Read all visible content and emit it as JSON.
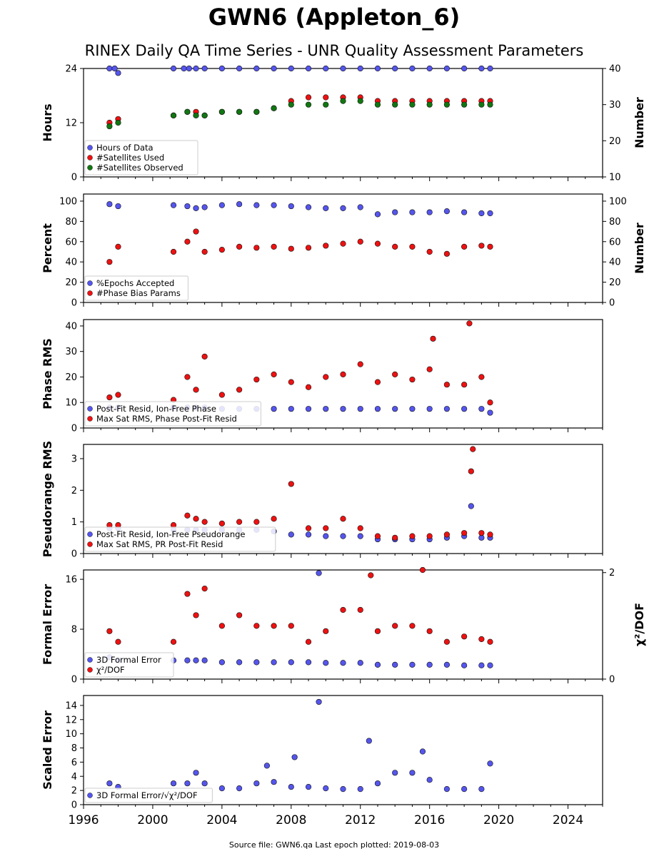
{
  "title": "GWN6 (Appleton_6)",
  "subtitle": "RINEX Daily QA Time Series - UNR Quality Assessment Parameters",
  "footer": "Source file: GWN6.qa Last epoch plotted: 2019-08-03",
  "colors": {
    "blue": "#5555ee",
    "red": "#ee1111",
    "green": "#117711"
  },
  "chart_data": [
    {
      "type": "scatter",
      "ylabel": "Hours",
      "ylabel_right": "Number",
      "ylim": [
        0,
        24
      ],
      "ylim_right": [
        10,
        40
      ],
      "yticks": [
        0,
        12,
        24
      ],
      "yticks_right": [
        10,
        20,
        30,
        40
      ],
      "legend": "bottom-left",
      "series": [
        {
          "name": "Hours of Data",
          "color": "blue",
          "axis": "left",
          "x": [
            1997.5,
            1997.8,
            1998.0,
            2001.2,
            2001.8,
            2002.1,
            2002.5,
            2003.0,
            2004.0,
            2005.0,
            2006.0,
            2007.0,
            2008.0,
            2009.0,
            2010.0,
            2011.0,
            2012.0,
            2013.0,
            2014.0,
            2015.0,
            2016.0,
            2017.0,
            2018.0,
            2019.0,
            2019.5
          ],
          "y": [
            24,
            24,
            23,
            24,
            24,
            24,
            24,
            24,
            24,
            24,
            24,
            24,
            24,
            24,
            24,
            24,
            24,
            24,
            24,
            24,
            24,
            24,
            24,
            24,
            24
          ]
        },
        {
          "name": "#Satellites Used",
          "color": "red",
          "axis": "right",
          "x": [
            1997.5,
            1998.0,
            2001.2,
            2002.0,
            2002.5,
            2003.0,
            2004.0,
            2005.0,
            2006.0,
            2007.0,
            2008.0,
            2009.0,
            2010.0,
            2011.0,
            2012.0,
            2013.0,
            2014.0,
            2015.0,
            2016.0,
            2017.0,
            2018.0,
            2019.0,
            2019.5
          ],
          "y": [
            25,
            26,
            27,
            28,
            28,
            27,
            28,
            28,
            28,
            29,
            31,
            32,
            32,
            32,
            32,
            31,
            31,
            31,
            31,
            31,
            31,
            31,
            31
          ]
        },
        {
          "name": "#Satellites Observed",
          "color": "green",
          "axis": "right",
          "x": [
            1997.5,
            1998.0,
            2001.2,
            2002.0,
            2002.5,
            2003.0,
            2004.0,
            2005.0,
            2006.0,
            2007.0,
            2008.0,
            2009.0,
            2010.0,
            2011.0,
            2012.0,
            2013.0,
            2014.0,
            2015.0,
            2016.0,
            2017.0,
            2018.0,
            2019.0,
            2019.5
          ],
          "y": [
            24,
            25,
            27,
            28,
            27,
            27,
            28,
            28,
            28,
            29,
            30,
            30,
            30,
            31,
            31,
            30,
            30,
            30,
            30,
            30,
            30,
            30,
            30
          ]
        }
      ]
    },
    {
      "type": "scatter",
      "ylabel": "Percent",
      "ylabel_right": "Number",
      "ylim": [
        0,
        107
      ],
      "ylim_right": [
        0,
        107
      ],
      "yticks": [
        0,
        20,
        40,
        60,
        80,
        100
      ],
      "yticks_right": [
        0,
        20,
        40,
        60,
        80,
        100
      ],
      "legend": "bottom-left",
      "series": [
        {
          "name": "%Epochs Accepted",
          "color": "blue",
          "axis": "left",
          "x": [
            1997.5,
            1998.0,
            2001.2,
            2002.0,
            2002.5,
            2003.0,
            2004.0,
            2005.0,
            2006.0,
            2007.0,
            2008.0,
            2009.0,
            2010.0,
            2011.0,
            2012.0,
            2013.0,
            2014.0,
            2015.0,
            2016.0,
            2017.0,
            2018.0,
            2019.0,
            2019.5
          ],
          "y": [
            97,
            95,
            96,
            95,
            93,
            94,
            96,
            97,
            96,
            96,
            95,
            94,
            93,
            93,
            94,
            87,
            89,
            89,
            89,
            90,
            89,
            88,
            88
          ]
        },
        {
          "name": "#Phase Bias Params",
          "color": "red",
          "axis": "right",
          "x": [
            1997.5,
            1998.0,
            2001.2,
            2002.0,
            2002.5,
            2003.0,
            2004.0,
            2005.0,
            2006.0,
            2007.0,
            2008.0,
            2009.0,
            2010.0,
            2011.0,
            2012.0,
            2013.0,
            2014.0,
            2015.0,
            2016.0,
            2017.0,
            2018.0,
            2019.0,
            2019.5
          ],
          "y": [
            40,
            55,
            50,
            60,
            70,
            50,
            52,
            55,
            54,
            55,
            53,
            54,
            56,
            58,
            60,
            58,
            55,
            55,
            50,
            48,
            55,
            56,
            55
          ]
        }
      ]
    },
    {
      "type": "scatter",
      "ylabel": "Phase RMS",
      "ylim": [
        0,
        42.5
      ],
      "yticks": [
        0,
        10,
        20,
        30,
        40
      ],
      "legend": "bottom-left",
      "series": [
        {
          "name": "Post-Fit Resid, Ion-Free Phase",
          "color": "blue",
          "x": [
            1997.5,
            1998.0,
            2001.2,
            2002.0,
            2002.5,
            2003.0,
            2004.0,
            2005.0,
            2006.0,
            2007.0,
            2008.0,
            2009.0,
            2010.0,
            2011.0,
            2012.0,
            2013.0,
            2014.0,
            2015.0,
            2016.0,
            2017.0,
            2018.0,
            2019.0,
            2019.5
          ],
          "y": [
            8,
            8,
            8,
            8,
            8,
            8,
            7.5,
            7.5,
            7.5,
            7.5,
            7.5,
            7.5,
            7.5,
            7.5,
            7.5,
            7.5,
            7.5,
            7.5,
            7.5,
            7.5,
            7.5,
            7.5,
            6
          ]
        },
        {
          "name": "Max Sat RMS, Phase Post-Fit Resid",
          "color": "red",
          "x": [
            1997.5,
            1998.0,
            2001.2,
            2002.0,
            2002.5,
            2003.0,
            2004.0,
            2005.0,
            2006.0,
            2007.0,
            2008.0,
            2009.0,
            2010.0,
            2011.0,
            2012.0,
            2013.0,
            2014.0,
            2015.0,
            2016.0,
            2016.2,
            2017.0,
            2018.0,
            2018.3,
            2019.0,
            2019.5
          ],
          "y": [
            12,
            13,
            11,
            20,
            15,
            28,
            13,
            15,
            19,
            21,
            18,
            16,
            20,
            21,
            25,
            18,
            21,
            19,
            23,
            35,
            17,
            17,
            41,
            20,
            10
          ]
        }
      ]
    },
    {
      "type": "scatter",
      "ylabel": "Pseudorange RMS",
      "ylim": [
        0,
        3.45
      ],
      "yticks": [
        0,
        1,
        2,
        3
      ],
      "legend": "bottom-left",
      "series": [
        {
          "name": "Post-Fit Resid, Ion-Free Pseudorange",
          "color": "blue",
          "x": [
            1997.5,
            1998.0,
            2001.2,
            2002.0,
            2002.5,
            2003.0,
            2004.0,
            2005.0,
            2006.0,
            2007.0,
            2008.0,
            2009.0,
            2010.0,
            2011.0,
            2012.0,
            2013.0,
            2014.0,
            2015.0,
            2016.0,
            2017.0,
            2018.0,
            2018.4,
            2019.0,
            2019.5
          ],
          "y": [
            0.8,
            0.8,
            0.75,
            0.75,
            0.75,
            0.75,
            0.75,
            0.75,
            0.75,
            0.7,
            0.6,
            0.6,
            0.55,
            0.55,
            0.55,
            0.45,
            0.45,
            0.45,
            0.45,
            0.5,
            0.55,
            1.5,
            0.5,
            0.5
          ]
        },
        {
          "name": "Max Sat RMS, PR Post-Fit Resid",
          "color": "red",
          "x": [
            1997.5,
            1998.0,
            2001.2,
            2002.0,
            2002.5,
            2003.0,
            2004.0,
            2005.0,
            2006.0,
            2007.0,
            2008.0,
            2009.0,
            2010.0,
            2011.0,
            2012.0,
            2013.0,
            2014.0,
            2015.0,
            2016.0,
            2017.0,
            2018.0,
            2018.4,
            2018.5,
            2019.0,
            2019.5
          ],
          "y": [
            0.9,
            0.9,
            0.9,
            1.2,
            1.1,
            1.0,
            0.95,
            1.0,
            1.0,
            1.1,
            2.2,
            0.8,
            0.8,
            1.1,
            0.8,
            0.55,
            0.5,
            0.55,
            0.55,
            0.6,
            0.65,
            2.6,
            3.3,
            0.65,
            0.6
          ]
        }
      ]
    },
    {
      "type": "scatter",
      "ylabel": "Formal Error",
      "ylabel_right": "χ²/DOF",
      "ylim": [
        0,
        17.5
      ],
      "ylim_right": [
        0,
        2.05
      ],
      "yticks": [
        0,
        8,
        16
      ],
      "yticks_right": [
        0,
        2
      ],
      "legend": "bottom-left",
      "series": [
        {
          "name": "3D Formal Error",
          "color": "blue",
          "axis": "left",
          "x": [
            1997.5,
            1998.0,
            2001.2,
            2002.0,
            2002.5,
            2003.0,
            2004.0,
            2005.0,
            2006.0,
            2007.0,
            2008.0,
            2009.0,
            2009.6,
            2010.0,
            2011.0,
            2012.0,
            2013.0,
            2014.0,
            2015.0,
            2016.0,
            2017.0,
            2018.0,
            2019.0,
            2019.5
          ],
          "y": [
            3.5,
            3.0,
            3.0,
            3.0,
            3.0,
            3.0,
            2.7,
            2.7,
            2.7,
            2.7,
            2.7,
            2.7,
            17.0,
            2.6,
            2.6,
            2.6,
            2.3,
            2.3,
            2.3,
            2.3,
            2.3,
            2.2,
            2.2,
            2.2
          ]
        },
        {
          "name": "χ²/DOF",
          "color": "red",
          "axis": "right",
          "x": [
            1997.5,
            1998.0,
            2001.2,
            2002.0,
            2002.5,
            2003.0,
            2004.0,
            2005.0,
            2006.0,
            2007.0,
            2008.0,
            2009.0,
            2010.0,
            2011.0,
            2012.0,
            2012.6,
            2013.0,
            2014.0,
            2015.0,
            2015.6,
            2016.0,
            2017.0,
            2018.0,
            2019.0,
            2019.5
          ],
          "y": [
            0.9,
            0.7,
            0.7,
            1.6,
            1.2,
            1.7,
            1.0,
            1.2,
            1.0,
            1.0,
            1.0,
            0.7,
            0.9,
            1.3,
            1.3,
            1.95,
            0.9,
            1.0,
            1.0,
            2.05,
            0.9,
            0.7,
            0.8,
            0.75,
            0.7
          ]
        }
      ]
    },
    {
      "type": "scatter",
      "ylabel": "Scaled Error",
      "ylim": [
        0,
        15.4
      ],
      "yticks": [
        0,
        2,
        4,
        6,
        8,
        10,
        12,
        14
      ],
      "xlim": [
        1996,
        2026
      ],
      "xticks": [
        1996,
        2000,
        2004,
        2008,
        2012,
        2016,
        2020,
        2024
      ],
      "legend": "bottom-left",
      "series": [
        {
          "name": "3D Formal Error/√χ²/DOF",
          "color": "blue",
          "x": [
            1997.5,
            1998.0,
            2001.2,
            2002.0,
            2002.5,
            2003.0,
            2004.0,
            2005.0,
            2006.0,
            2006.6,
            2007.0,
            2008.0,
            2008.2,
            2009.0,
            2009.6,
            2010.0,
            2011.0,
            2012.0,
            2012.5,
            2013.0,
            2014.0,
            2015.0,
            2015.6,
            2016.0,
            2017.0,
            2018.0,
            2019.0,
            2019.5
          ],
          "y": [
            3.0,
            2.5,
            3.0,
            3.0,
            4.5,
            3.0,
            2.3,
            2.3,
            3.0,
            5.5,
            3.2,
            2.5,
            6.7,
            2.5,
            14.5,
            2.3,
            2.2,
            2.2,
            9.0,
            3.0,
            4.5,
            4.5,
            7.5,
            3.5,
            2.2,
            2.2,
            2.2,
            5.8
          ]
        }
      ]
    }
  ]
}
